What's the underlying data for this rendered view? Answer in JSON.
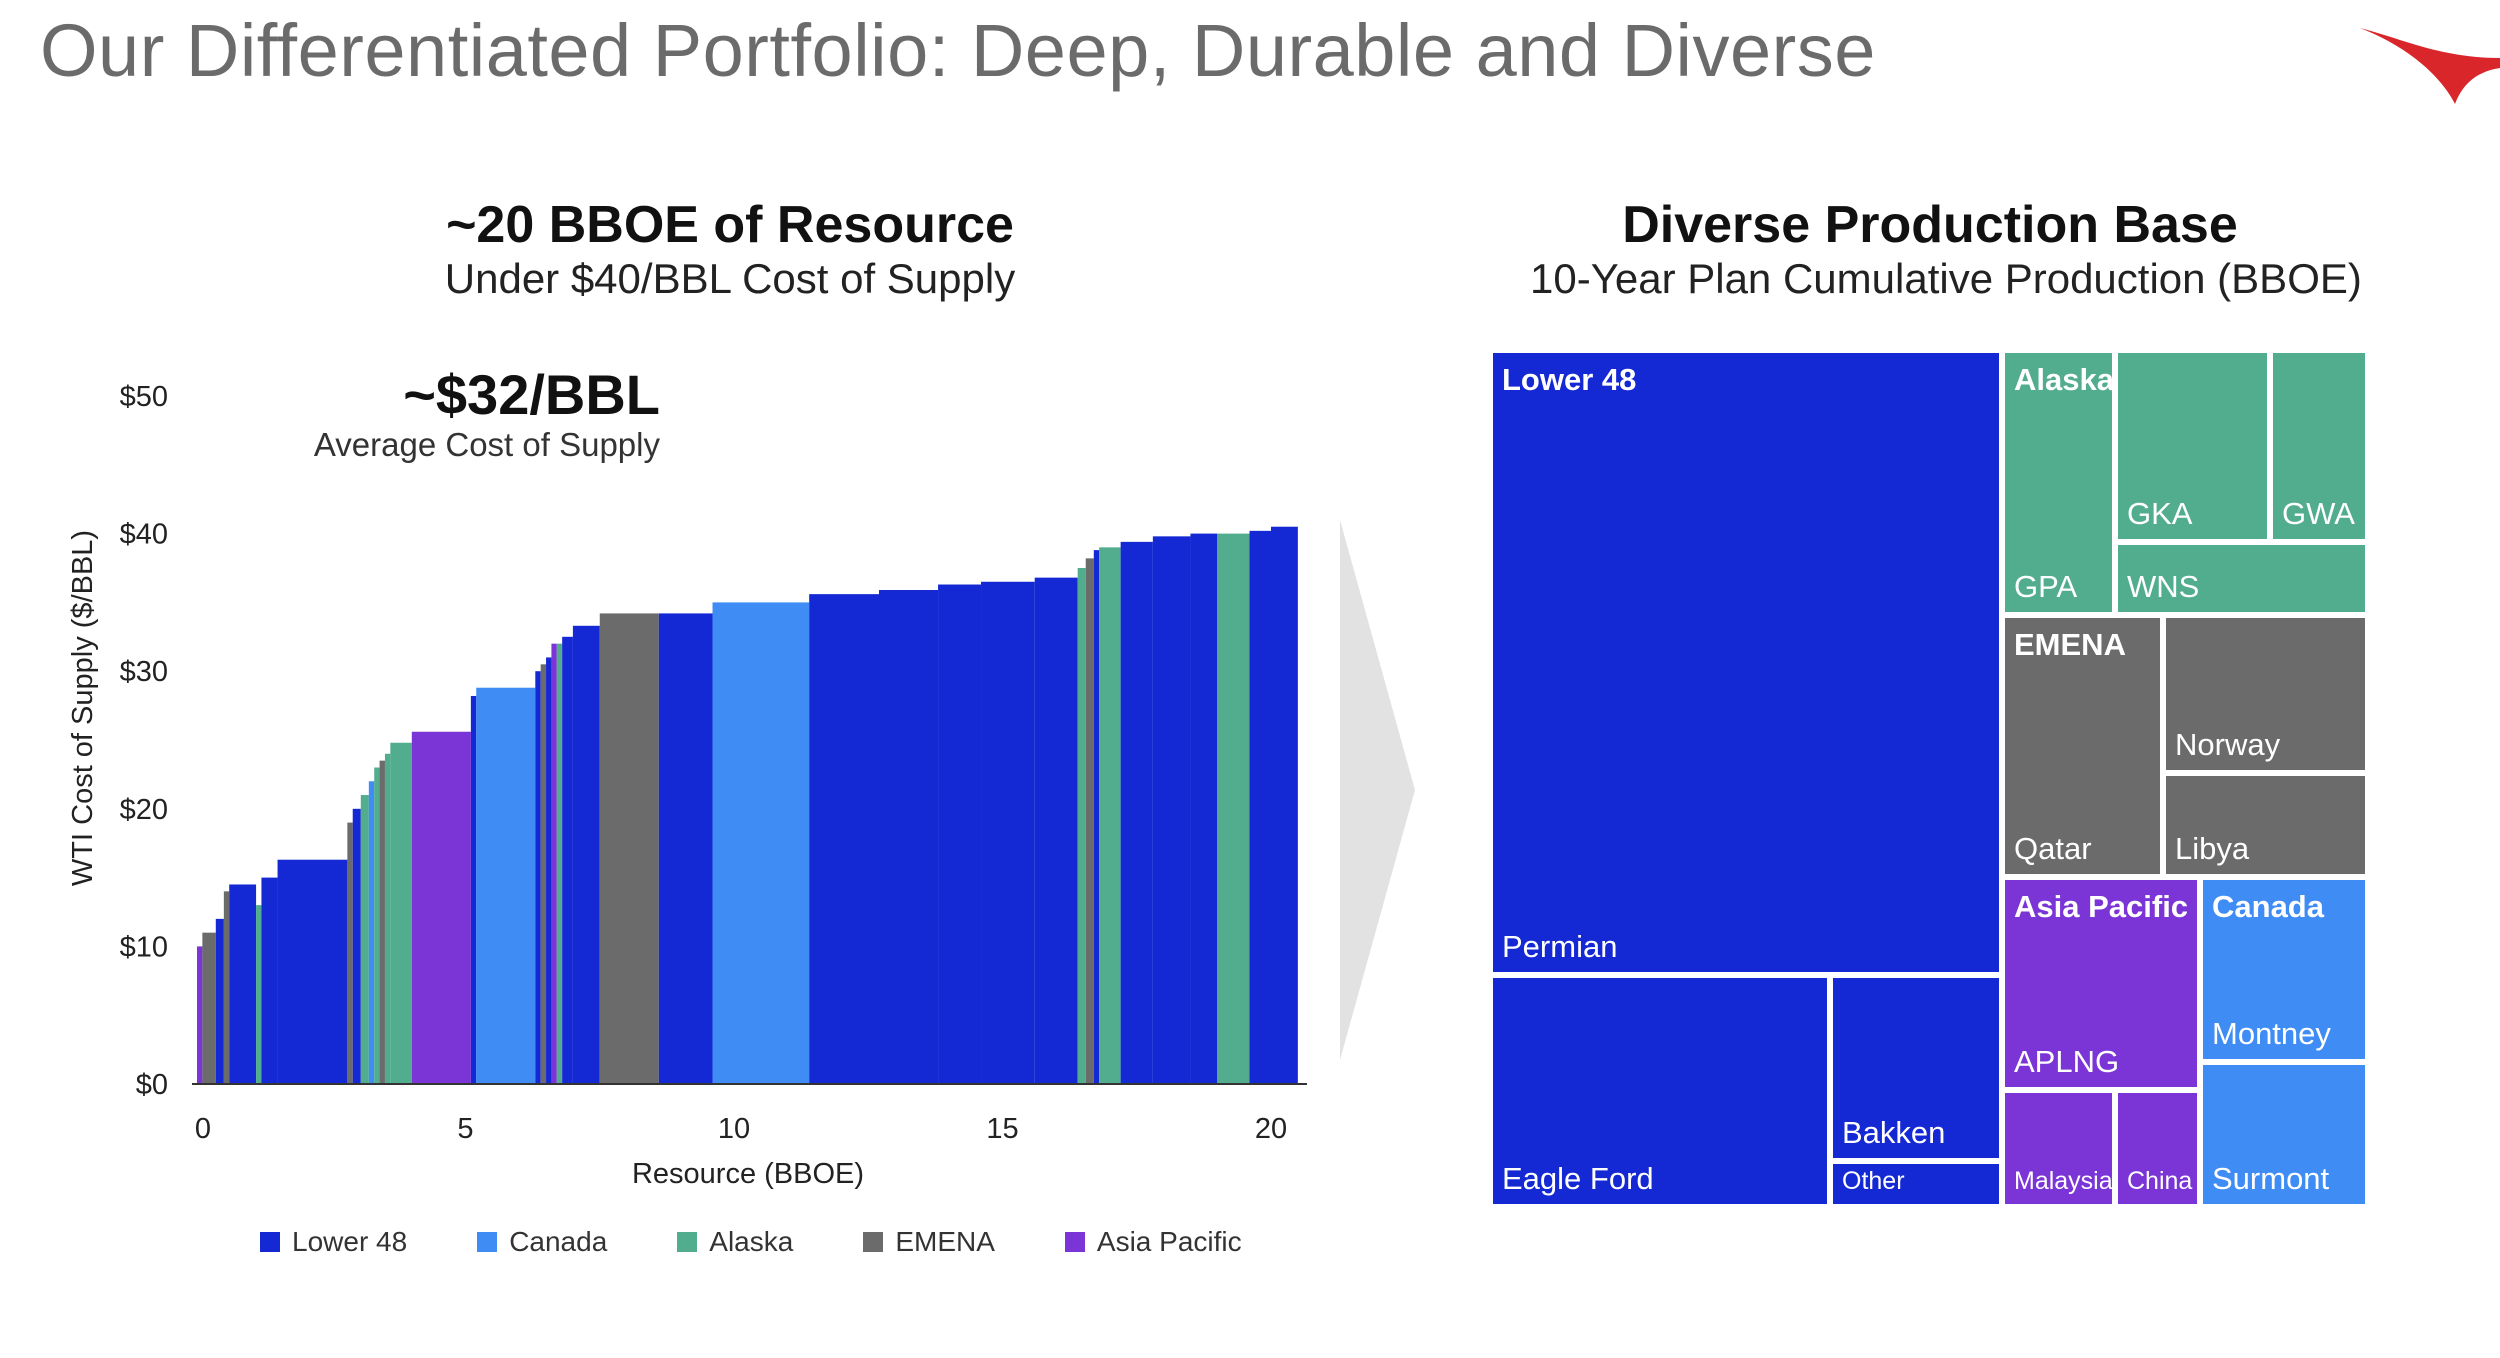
{
  "page": {
    "title": "Our Differentiated Portfolio: Deep, Durable and Diverse"
  },
  "colors": {
    "lower48": "#1428d4",
    "canada": "#3f8cf5",
    "alaska": "#52ad8e",
    "emena": "#6b6b6b",
    "asia_pacific": "#7b35d6",
    "logo": "#d9262b"
  },
  "icons": {
    "logo": "conocophillips-logo-icon",
    "arrow": "chevron-right-icon"
  },
  "left": {
    "title": "~20 BBOE of Resource",
    "subtitle": "Under $40/BBL Cost of Supply",
    "avg_value": "~$32/BBL",
    "avg_label": "Average Cost of Supply"
  },
  "right": {
    "title": "Diverse Production Base",
    "subtitle": "10-Year Plan Cumulative Production (BBOE)"
  },
  "chart_data": [
    {
      "type": "bar",
      "subtype": "cost-of-supply-curve",
      "xlabel": "Resource (BBOE)",
      "ylabel": "WTI Cost of Supply ($/BBL)",
      "xlim": [
        0,
        20.6
      ],
      "ylim": [
        0,
        50
      ],
      "x_ticks": [
        "0",
        "5",
        "10",
        "15",
        "20"
      ],
      "x_tick_values": [
        0,
        5,
        10,
        15,
        20
      ],
      "y_ticks": [
        "$0",
        "$10",
        "$20",
        "$30",
        "$40",
        "$50"
      ],
      "y_tick_values": [
        0,
        10,
        20,
        30,
        40,
        50
      ],
      "grid": false,
      "legend": {
        "position": "bottom",
        "entries": [
          {
            "key": "lower48",
            "label": "Lower 48"
          },
          {
            "key": "canada",
            "label": "Canada"
          },
          {
            "key": "alaska",
            "label": "Alaska"
          },
          {
            "key": "emena",
            "label": "EMENA"
          },
          {
            "key": "asia_pacific",
            "label": "Asia Pacific"
          }
        ]
      },
      "segments": [
        {
          "x0": 0.0,
          "x1": 0.1,
          "value": 10,
          "region": "asia_pacific"
        },
        {
          "x0": 0.1,
          "x1": 0.35,
          "value": 11,
          "region": "emena"
        },
        {
          "x0": 0.35,
          "x1": 0.5,
          "value": 12,
          "region": "lower48"
        },
        {
          "x0": 0.5,
          "x1": 0.6,
          "value": 14,
          "region": "emena"
        },
        {
          "x0": 0.6,
          "x1": 1.1,
          "value": 14.5,
          "region": "lower48"
        },
        {
          "x0": 1.1,
          "x1": 1.2,
          "value": 13,
          "region": "alaska"
        },
        {
          "x0": 1.2,
          "x1": 1.5,
          "value": 15,
          "region": "lower48"
        },
        {
          "x0": 1.5,
          "x1": 2.8,
          "value": 16.3,
          "region": "lower48"
        },
        {
          "x0": 2.8,
          "x1": 2.9,
          "value": 19,
          "region": "emena"
        },
        {
          "x0": 2.9,
          "x1": 3.05,
          "value": 20,
          "region": "lower48"
        },
        {
          "x0": 3.05,
          "x1": 3.2,
          "value": 21,
          "region": "alaska"
        },
        {
          "x0": 3.2,
          "x1": 3.3,
          "value": 22,
          "region": "canada"
        },
        {
          "x0": 3.3,
          "x1": 3.4,
          "value": 23,
          "region": "alaska"
        },
        {
          "x0": 3.4,
          "x1": 3.5,
          "value": 23.5,
          "region": "emena"
        },
        {
          "x0": 3.5,
          "x1": 3.6,
          "value": 24,
          "region": "alaska"
        },
        {
          "x0": 3.6,
          "x1": 4.0,
          "value": 24.8,
          "region": "alaska"
        },
        {
          "x0": 4.0,
          "x1": 5.1,
          "value": 25.6,
          "region": "asia_pacific"
        },
        {
          "x0": 5.1,
          "x1": 5.2,
          "value": 28.2,
          "region": "lower48"
        },
        {
          "x0": 5.2,
          "x1": 6.3,
          "value": 28.8,
          "region": "canada"
        },
        {
          "x0": 6.3,
          "x1": 6.4,
          "value": 30,
          "region": "lower48"
        },
        {
          "x0": 6.4,
          "x1": 6.5,
          "value": 30.5,
          "region": "emena"
        },
        {
          "x0": 6.5,
          "x1": 6.6,
          "value": 31,
          "region": "lower48"
        },
        {
          "x0": 6.6,
          "x1": 6.7,
          "value": 32,
          "region": "asia_pacific"
        },
        {
          "x0": 6.7,
          "x1": 6.8,
          "value": 32,
          "region": "alaska"
        },
        {
          "x0": 6.8,
          "x1": 7.0,
          "value": 32.5,
          "region": "lower48"
        },
        {
          "x0": 7.0,
          "x1": 7.5,
          "value": 33.3,
          "region": "lower48"
        },
        {
          "x0": 7.5,
          "x1": 8.6,
          "value": 34.2,
          "region": "emena"
        },
        {
          "x0": 8.6,
          "x1": 9.6,
          "value": 34.2,
          "region": "lower48"
        },
        {
          "x0": 9.6,
          "x1": 11.4,
          "value": 35,
          "region": "canada"
        },
        {
          "x0": 11.4,
          "x1": 12.7,
          "value": 35.6,
          "region": "lower48"
        },
        {
          "x0": 12.7,
          "x1": 13.8,
          "value": 35.9,
          "region": "lower48"
        },
        {
          "x0": 13.8,
          "x1": 14.6,
          "value": 36.3,
          "region": "lower48"
        },
        {
          "x0": 14.6,
          "x1": 15.6,
          "value": 36.5,
          "region": "lower48"
        },
        {
          "x0": 15.6,
          "x1": 16.4,
          "value": 36.8,
          "region": "lower48"
        },
        {
          "x0": 16.4,
          "x1": 16.55,
          "value": 37.5,
          "region": "alaska"
        },
        {
          "x0": 16.55,
          "x1": 16.7,
          "value": 38.2,
          "region": "emena"
        },
        {
          "x0": 16.7,
          "x1": 16.8,
          "value": 38.8,
          "region": "lower48"
        },
        {
          "x0": 16.8,
          "x1": 17.2,
          "value": 39,
          "region": "alaska"
        },
        {
          "x0": 17.2,
          "x1": 17.8,
          "value": 39.4,
          "region": "lower48"
        },
        {
          "x0": 17.8,
          "x1": 18.5,
          "value": 39.8,
          "region": "lower48"
        },
        {
          "x0": 18.5,
          "x1": 19.0,
          "value": 40,
          "region": "lower48"
        },
        {
          "x0": 19.0,
          "x1": 19.6,
          "value": 40,
          "region": "alaska"
        },
        {
          "x0": 19.6,
          "x1": 20.0,
          "value": 40.2,
          "region": "lower48"
        },
        {
          "x0": 20.0,
          "x1": 20.5,
          "value": 40.5,
          "region": "lower48"
        }
      ]
    },
    {
      "type": "treemap",
      "title": "Diverse Production Base",
      "subtitle": "10-Year Plan Cumulative Production (BBOE)",
      "groups": [
        {
          "name": "Lower 48",
          "region": "lower48",
          "items": [
            {
              "name": "Permian",
              "share": 0.328
            },
            {
              "name": "Eagle Ford",
              "share": 0.101
            },
            {
              "name": "Bakken",
              "share": 0.047
            },
            {
              "name": "Other",
              "share": 0.013
            }
          ]
        },
        {
          "name": "Alaska",
          "region": "alaska",
          "items": [
            {
              "name": "GPA",
              "share": 0.041
            },
            {
              "name": "GKA",
              "share": 0.034
            },
            {
              "name": "GWA",
              "share": 0.021
            },
            {
              "name": "WNS",
              "share": 0.025
            }
          ]
        },
        {
          "name": "EMENA",
          "region": "emena",
          "items": [
            {
              "name": "Qatar",
              "share": 0.046
            },
            {
              "name": "Norway",
              "share": 0.036
            },
            {
              "name": "Libya",
              "share": 0.024
            }
          ]
        },
        {
          "name": "Asia Pacific",
          "region": "asia_pacific",
          "items": [
            {
              "name": "APLNG",
              "share": 0.047
            },
            {
              "name": "Malaysia",
              "share": 0.017
            },
            {
              "name": "China",
              "share": 0.015
            }
          ]
        },
        {
          "name": "Canada",
          "region": "canada",
          "items": [
            {
              "name": "Montney",
              "share": 0.041
            },
            {
              "name": "Surmont",
              "share": 0.032
            }
          ]
        }
      ]
    }
  ]
}
